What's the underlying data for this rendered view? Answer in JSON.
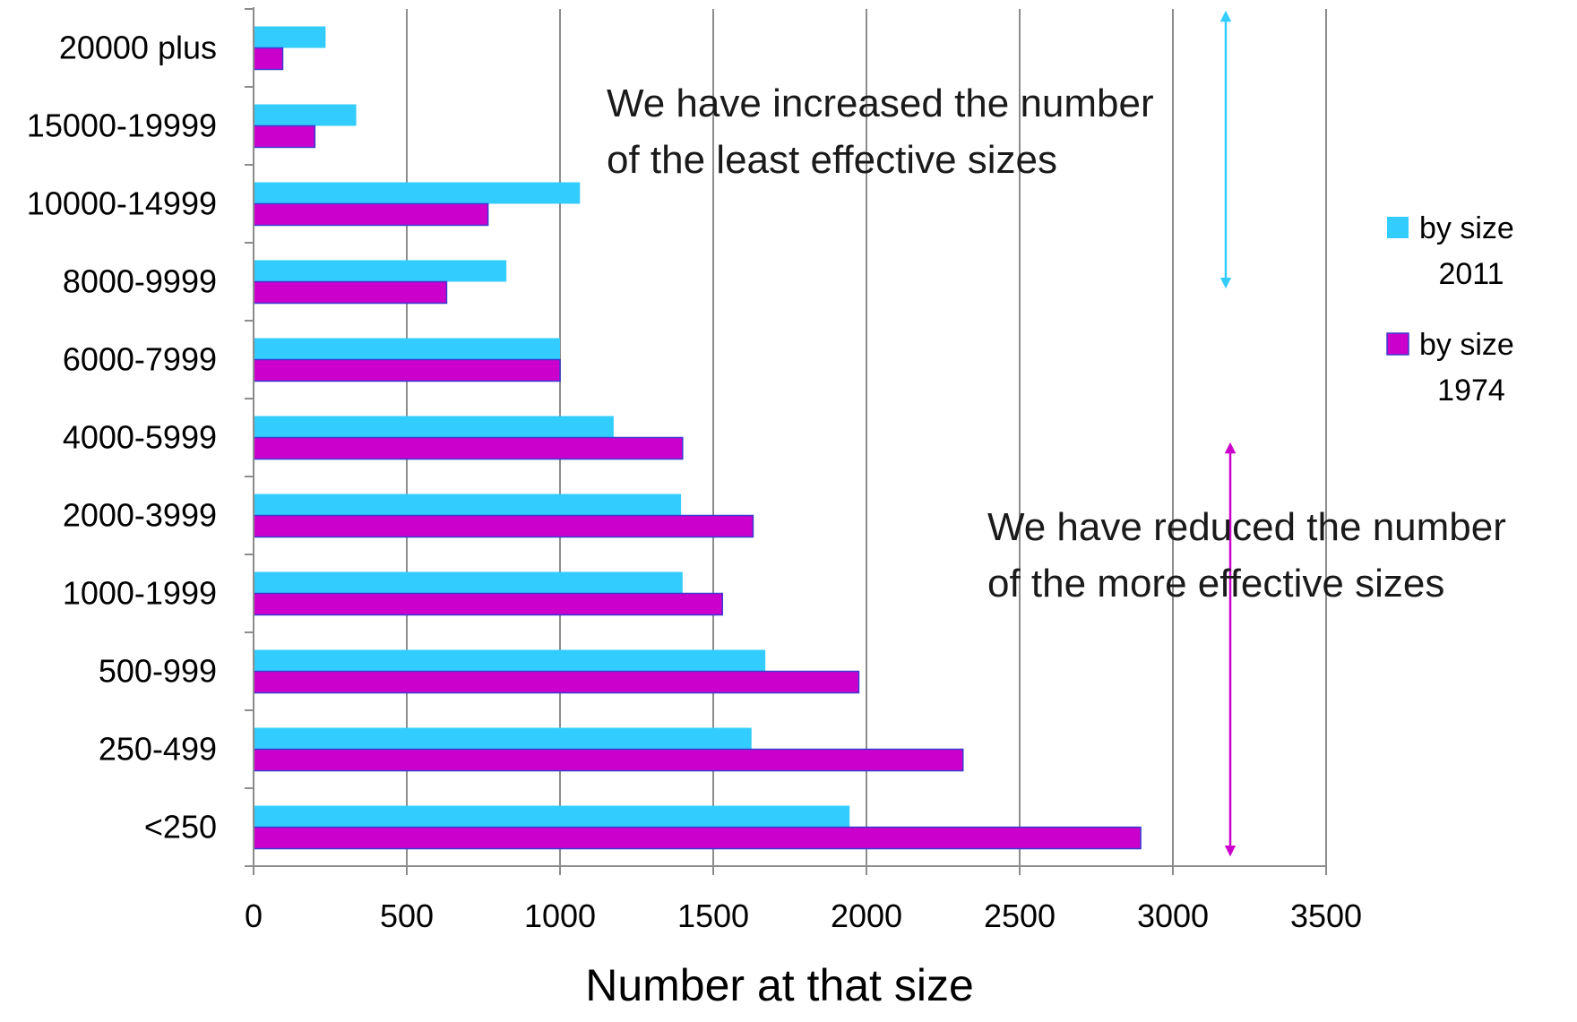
{
  "chart_data": {
    "type": "bar",
    "orientation": "horizontal",
    "categories": [
      "20000 plus",
      "15000-19999",
      "10000-14999",
      "8000-9999",
      "6000-7999",
      "4000-5999",
      "2000-3999",
      "1000-1999",
      "500-999",
      "250-499",
      "<250"
    ],
    "series": [
      {
        "name": "by size 2011",
        "legend_lines": [
          "by size",
          "2011"
        ],
        "color": "#33ccff",
        "values": [
          235,
          335,
          1065,
          825,
          1000,
          1175,
          1395,
          1400,
          1670,
          1625,
          1945
        ]
      },
      {
        "name": "by size 1974",
        "legend_lines": [
          "by size",
          "1974"
        ],
        "color": "#cc00cc",
        "values": [
          95,
          200,
          765,
          630,
          1000,
          1400,
          1630,
          1530,
          1975,
          2315,
          2895
        ]
      }
    ],
    "xlabel": "Number at that size",
    "ylabel": "",
    "title": "",
    "xlim": [
      0,
      3500
    ],
    "xticks": [
      0,
      500,
      1000,
      1500,
      2000,
      2500,
      3000,
      3500
    ],
    "grid": "vertical",
    "legend_position": "right",
    "annotations": [
      {
        "lines": [
          "We have increased the number",
          "of the least effective sizes"
        ],
        "arrow_color": "#33ccff"
      },
      {
        "lines": [
          "We have reduced the number",
          "of the more effective sizes"
        ],
        "arrow_color": "#cc00cc"
      }
    ]
  }
}
